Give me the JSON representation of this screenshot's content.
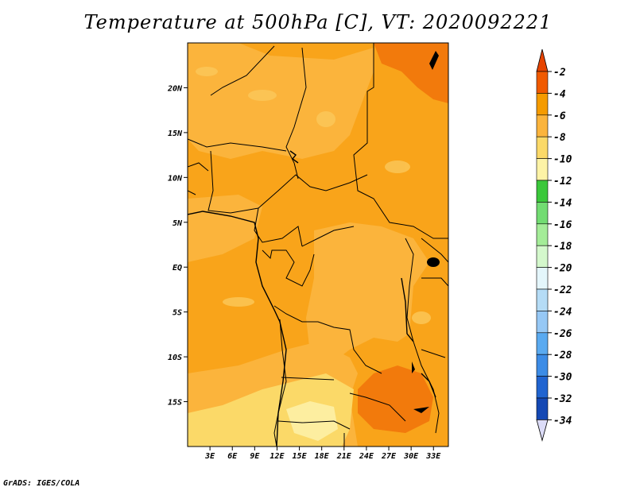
{
  "title": "Temperature at 500hPa [C], VT: 2020092221",
  "credit": "GrADS: IGES/COLA",
  "map": {
    "projection": "lat-lon",
    "lon_range": [
      0,
      35
    ],
    "lat_range": [
      -20,
      25
    ],
    "lon_ticks": [
      "3E",
      "6E",
      "9E",
      "12E",
      "15E",
      "18E",
      "21E",
      "24E",
      "27E",
      "30E",
      "33E"
    ],
    "lat_ticks": [
      "20N",
      "15N",
      "10N",
      "5N",
      "EQ",
      "5S",
      "10S",
      "15S"
    ],
    "dominant_ranges": [
      "-4 to -6",
      "-6 to -8",
      "-8 to -10",
      "-2 to -4"
    ]
  },
  "colorbar": {
    "labels": [
      "-2",
      "-4",
      "-6",
      "-8",
      "-10",
      "-12",
      "-14",
      "-16",
      "-18",
      "-20",
      "-22",
      "-24",
      "-26",
      "-28",
      "-30",
      "-32",
      "-34"
    ],
    "colors": [
      "#f05a00",
      "#f59b00",
      "#fbb43c",
      "#fbd968",
      "#fdf3a6",
      "#3bc83b",
      "#72dc72",
      "#a4ec98",
      "#d4f8cc",
      "#e4f6fb",
      "#b5dcf6",
      "#96c8f5",
      "#5aaaf0",
      "#3c8ce6",
      "#2064d0",
      "#1448b4",
      "#0a1e8c"
    ],
    "top_triangle_color": "#e64400",
    "bottom_triangle_color": "#dcdcf8"
  }
}
